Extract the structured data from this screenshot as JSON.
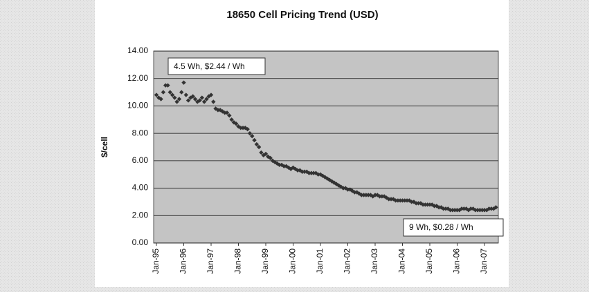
{
  "chart_data": {
    "type": "scatter",
    "title": "18650 Cell Pricing Trend (USD)",
    "y_label": "$/cell",
    "annotations": [
      "4.5 Wh, $2.44 / Wh",
      "9 Wh, $0.28 / Wh"
    ],
    "color": "#333333",
    "grid": true,
    "ylim": [
      0,
      14
    ],
    "yticks": [
      {
        "value": 0,
        "label": "0.00"
      },
      {
        "value": 2,
        "label": "2.00"
      },
      {
        "value": 4,
        "label": "4.00"
      },
      {
        "value": 6,
        "label": "6.00"
      },
      {
        "value": 8,
        "label": "8.00"
      },
      {
        "value": 10,
        "label": "10.00"
      },
      {
        "value": 12,
        "label": "12.00"
      },
      {
        "value": 14,
        "label": "14.00"
      }
    ],
    "categories": [
      "Jan-95",
      null,
      null,
      null,
      null,
      null,
      null,
      null,
      null,
      null,
      null,
      null,
      "Jan-96",
      null,
      null,
      null,
      null,
      null,
      null,
      null,
      null,
      null,
      null,
      null,
      "Jan-97",
      null,
      null,
      null,
      null,
      null,
      null,
      null,
      null,
      null,
      null,
      null,
      "Jan-98",
      null,
      null,
      null,
      null,
      null,
      null,
      null,
      null,
      null,
      null,
      null,
      "Jan-99",
      null,
      null,
      null,
      null,
      null,
      null,
      null,
      null,
      null,
      null,
      null,
      "Jan-00",
      null,
      null,
      null,
      null,
      null,
      null,
      null,
      null,
      null,
      null,
      null,
      "Jan-01",
      null,
      null,
      null,
      null,
      null,
      null,
      null,
      null,
      null,
      null,
      null,
      "Jan-02",
      null,
      null,
      null,
      null,
      null,
      null,
      null,
      null,
      null,
      null,
      null,
      "Jan-03",
      null,
      null,
      null,
      null,
      null,
      null,
      null,
      null,
      null,
      null,
      null,
      "Jan-04",
      null,
      null,
      null,
      null,
      null,
      null,
      null,
      null,
      null,
      null,
      null,
      "Jan-05",
      null,
      null,
      null,
      null,
      null,
      null,
      null,
      null,
      null,
      null,
      null,
      "Jan-06",
      null,
      null,
      null,
      null,
      null,
      null,
      null,
      null,
      null,
      null,
      null,
      "Jan-07",
      null,
      null,
      null,
      null,
      null
    ],
    "values": [
      10.8,
      10.6,
      10.5,
      11.0,
      11.5,
      11.5,
      11.0,
      10.8,
      10.6,
      10.3,
      10.5,
      11.0,
      11.7,
      10.8,
      10.4,
      10.6,
      10.7,
      10.5,
      10.3,
      10.4,
      10.6,
      10.3,
      10.5,
      10.7,
      10.8,
      10.3,
      9.8,
      9.7,
      9.7,
      9.6,
      9.5,
      9.5,
      9.3,
      9.0,
      8.8,
      8.7,
      8.5,
      8.4,
      8.4,
      8.4,
      8.3,
      8.0,
      7.8,
      7.5,
      7.2,
      7.0,
      6.6,
      6.4,
      6.5,
      6.3,
      6.2,
      6.0,
      5.9,
      5.8,
      5.7,
      5.7,
      5.6,
      5.6,
      5.5,
      5.4,
      5.5,
      5.4,
      5.3,
      5.3,
      5.2,
      5.2,
      5.2,
      5.1,
      5.1,
      5.1,
      5.1,
      5.0,
      5.0,
      4.9,
      4.8,
      4.7,
      4.6,
      4.5,
      4.4,
      4.3,
      4.2,
      4.1,
      4.0,
      4.0,
      3.9,
      3.9,
      3.8,
      3.7,
      3.7,
      3.6,
      3.5,
      3.5,
      3.5,
      3.5,
      3.5,
      3.4,
      3.5,
      3.5,
      3.4,
      3.4,
      3.4,
      3.3,
      3.2,
      3.2,
      3.2,
      3.1,
      3.1,
      3.1,
      3.1,
      3.1,
      3.1,
      3.1,
      3.0,
      3.0,
      2.9,
      2.9,
      2.9,
      2.8,
      2.8,
      2.8,
      2.8,
      2.8,
      2.7,
      2.7,
      2.6,
      2.6,
      2.5,
      2.5,
      2.5,
      2.4,
      2.4,
      2.4,
      2.4,
      2.4,
      2.5,
      2.5,
      2.5,
      2.4,
      2.5,
      2.5,
      2.4,
      2.4,
      2.4,
      2.4,
      2.4,
      2.4,
      2.5,
      2.5,
      2.5,
      2.6
    ]
  }
}
